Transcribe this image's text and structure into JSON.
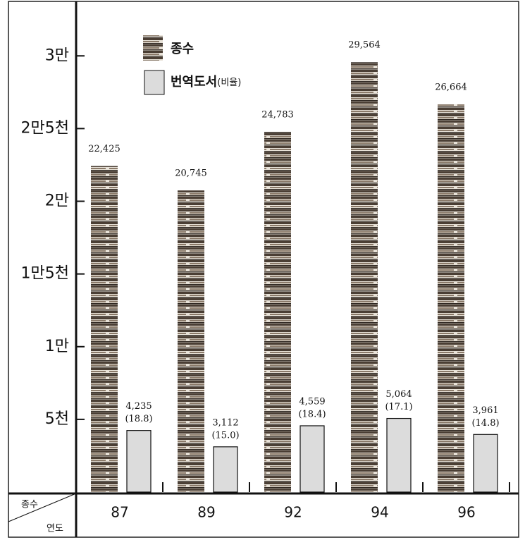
{
  "chart_data": {
    "type": "bar",
    "categories": [
      "87",
      "89",
      "92",
      "94",
      "96"
    ],
    "table_header": [
      "종수",
      "연도"
    ],
    "series": [
      {
        "name": "종수",
        "color": "#6b5a4a",
        "values": [
          22425,
          20745,
          24783,
          29564,
          26664
        ],
        "value_labels": [
          "22,425",
          "20,745",
          "24,783",
          "29,564",
          "26,664"
        ]
      },
      {
        "name": "번역도서",
        "name_suffix": "(비율)",
        "color": "#dcdcdc",
        "values": [
          4235,
          3112,
          4559,
          5064,
          3961
        ],
        "value_labels": [
          "4,235",
          "3,112",
          "4,559",
          "5,064",
          "3,961"
        ],
        "ratio": [
          18.8,
          15.0,
          18.4,
          17.1,
          14.8
        ],
        "ratio_labels": [
          "(18.8)",
          "(15.0)",
          "(18.4)",
          "(17.1)",
          "(14.8)"
        ]
      }
    ],
    "ylim": [
      0,
      33600
    ],
    "yticks": [
      {
        "value": 5000,
        "label": "5천"
      },
      {
        "value": 10000,
        "label": "1만"
      },
      {
        "value": 15000,
        "label": "1만5천"
      },
      {
        "value": 20000,
        "label": "2만"
      },
      {
        "value": 25000,
        "label": "2만5천"
      },
      {
        "value": 30000,
        "label": "3만"
      }
    ]
  }
}
